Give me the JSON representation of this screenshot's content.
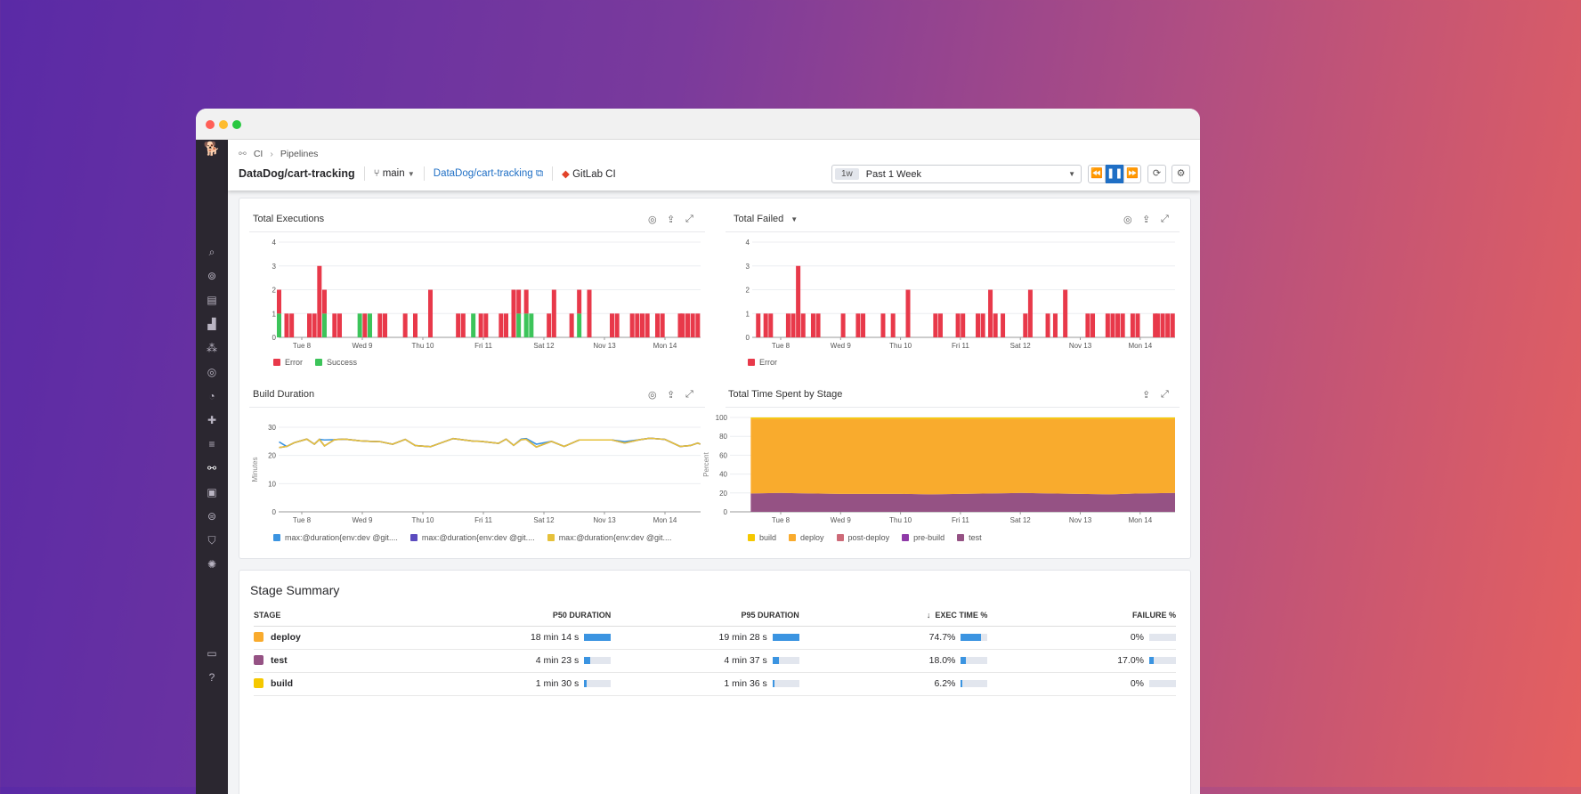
{
  "window": {
    "controls": [
      "#ff5f57",
      "#febc2e",
      "#28c840"
    ]
  },
  "sidebar": {
    "icons": [
      "datadog-logo-icon",
      "search-icon",
      "binoculars-icon",
      "dashboard-icon",
      "chart-icon",
      "services-icon",
      "apm-icon",
      "gauge-icon",
      "puzzle-icon",
      "logs-icon",
      "ci-icon",
      "notebook-icon",
      "security-scan-icon",
      "shield-icon",
      "integrations-icon",
      "chat-icon",
      "help-icon"
    ]
  },
  "header": {
    "breadcrumb": [
      "CI",
      "Pipelines"
    ],
    "title": "DataDog/cart-tracking",
    "branch": "main",
    "repo_link": "DataDog/cart-tracking",
    "provider": "GitLab CI",
    "time_badge": "1w",
    "time_range": "Past 1 Week"
  },
  "charts": {
    "executions": {
      "title": "Total Executions",
      "legend": [
        "Error",
        "Success"
      ]
    },
    "failed": {
      "title": "Total Failed",
      "legend": [
        "Error"
      ]
    },
    "duration": {
      "title": "Build Duration",
      "legend": [
        "max:@duration{env:dev @git....",
        "max:@duration{env:dev @git....",
        "max:@duration{env:dev @git...."
      ]
    },
    "stage": {
      "title": "Total Time Spent by Stage",
      "legend": [
        "build",
        "deploy",
        "post-deploy",
        "pre-build",
        "test"
      ]
    }
  },
  "colors": {
    "error": "#e8394a",
    "success": "#3cc45a",
    "dur1": "#3b94e1",
    "dur2": "#5b4bbf",
    "dur3": "#e6c13a",
    "build": "#f5c800",
    "deploy": "#f9ab2d",
    "post_deploy": "#cd6a78",
    "pre_build": "#8f3aa8",
    "test": "#955284",
    "accent": "#1f6fc5"
  },
  "chart_data": [
    {
      "type": "bar",
      "title": "Total Executions",
      "stacked": true,
      "ylim": [
        0,
        4
      ],
      "yticks": [
        0,
        1,
        2,
        3,
        4
      ],
      "xticks": [
        "Tue 8",
        "Wed 9",
        "Thu 10",
        "Fri 11",
        "Sat 12",
        "Nov 13",
        "Mon 14"
      ],
      "legend": "bottom-left",
      "series": [
        {
          "name": "Error",
          "points": [
            [
              "11-07 15:00",
              1
            ],
            [
              "11-07 18:00",
              1
            ],
            [
              "11-07 20:00",
              1
            ],
            [
              "11-08 03:00",
              1
            ],
            [
              "11-08 05:00",
              1
            ],
            [
              "11-08 07:00",
              3
            ],
            [
              "11-08 09:00",
              1
            ],
            [
              "11-08 13:00",
              1
            ],
            [
              "11-08 15:00",
              1
            ],
            [
              "11-09 01:00",
              1
            ],
            [
              "11-09 07:00",
              1
            ],
            [
              "11-09 09:00",
              1
            ],
            [
              "11-09 17:00",
              1
            ],
            [
              "11-09 21:00",
              1
            ],
            [
              "11-10 03:00",
              2
            ],
            [
              "11-10 14:00",
              1
            ],
            [
              "11-10 16:00",
              1
            ],
            [
              "11-10 23:00",
              1
            ],
            [
              "11-11 01:00",
              1
            ],
            [
              "11-11 07:00",
              1
            ],
            [
              "11-11 09:00",
              1
            ],
            [
              "11-11 12:00",
              2
            ],
            [
              "11-11 14:00",
              1
            ],
            [
              "11-11 17:00",
              1
            ],
            [
              "11-12 02:00",
              1
            ],
            [
              "11-12 04:00",
              2
            ],
            [
              "11-12 11:00",
              1
            ],
            [
              "11-12 14:00",
              1
            ],
            [
              "11-12 18:00",
              2
            ],
            [
              "11-13 03:00",
              1
            ],
            [
              "11-13 05:00",
              1
            ],
            [
              "11-13 11:00",
              1
            ],
            [
              "11-13 13:00",
              1
            ],
            [
              "11-13 15:00",
              1
            ],
            [
              "11-13 17:00",
              1
            ],
            [
              "11-13 21:00",
              1
            ],
            [
              "11-13 23:00",
              1
            ],
            [
              "11-14 06:00",
              1
            ],
            [
              "11-14 07:00",
              1
            ],
            [
              "11-14 09:00",
              1
            ],
            [
              "11-14 11:00",
              1
            ],
            [
              "11-14 13:00",
              1
            ]
          ]
        },
        {
          "name": "Success",
          "points": [
            [
              "11-07 15:00",
              1
            ],
            [
              "11-08 09:00",
              1
            ],
            [
              "11-08 23:00",
              1
            ],
            [
              "11-09 03:00",
              1
            ],
            [
              "11-10 20:00",
              1
            ],
            [
              "11-11 14:00",
              1
            ],
            [
              "11-11 17:00",
              1
            ],
            [
              "11-11 19:00",
              1
            ],
            [
              "11-12 14:00",
              1
            ]
          ]
        }
      ]
    },
    {
      "type": "bar",
      "title": "Total Failed",
      "ylim": [
        0,
        4
      ],
      "yticks": [
        0,
        1,
        2,
        3,
        4
      ],
      "xticks": [
        "Tue 8",
        "Wed 9",
        "Thu 10",
        "Fri 11",
        "Sat 12",
        "Nov 13",
        "Mon 14"
      ],
      "legend": "bottom-left",
      "series": [
        {
          "name": "Error",
          "points": [
            [
              "11-07 15:00",
              1
            ],
            [
              "11-07 18:00",
              1
            ],
            [
              "11-07 20:00",
              1
            ],
            [
              "11-08 03:00",
              1
            ],
            [
              "11-08 05:00",
              1
            ],
            [
              "11-08 07:00",
              3
            ],
            [
              "11-08 09:00",
              1
            ],
            [
              "11-08 13:00",
              1
            ],
            [
              "11-08 15:00",
              1
            ],
            [
              "11-09 01:00",
              1
            ],
            [
              "11-09 07:00",
              1
            ],
            [
              "11-09 09:00",
              1
            ],
            [
              "11-09 17:00",
              1
            ],
            [
              "11-09 21:00",
              1
            ],
            [
              "11-10 03:00",
              2
            ],
            [
              "11-10 14:00",
              1
            ],
            [
              "11-10 16:00",
              1
            ],
            [
              "11-10 23:00",
              1
            ],
            [
              "11-11 01:00",
              1
            ],
            [
              "11-11 07:00",
              1
            ],
            [
              "11-11 09:00",
              1
            ],
            [
              "11-11 12:00",
              2
            ],
            [
              "11-11 14:00",
              1
            ],
            [
              "11-11 17:00",
              1
            ],
            [
              "11-12 02:00",
              1
            ],
            [
              "11-12 04:00",
              2
            ],
            [
              "11-12 11:00",
              1
            ],
            [
              "11-12 14:00",
              1
            ],
            [
              "11-12 18:00",
              2
            ],
            [
              "11-13 03:00",
              1
            ],
            [
              "11-13 05:00",
              1
            ],
            [
              "11-13 11:00",
              1
            ],
            [
              "11-13 13:00",
              1
            ],
            [
              "11-13 15:00",
              1
            ],
            [
              "11-13 17:00",
              1
            ],
            [
              "11-13 21:00",
              1
            ],
            [
              "11-13 23:00",
              1
            ],
            [
              "11-14 06:00",
              1
            ],
            [
              "11-14 07:00",
              1
            ],
            [
              "11-14 09:00",
              1
            ],
            [
              "11-14 11:00",
              1
            ],
            [
              "11-14 13:00",
              1
            ]
          ]
        }
      ]
    },
    {
      "type": "line",
      "title": "Build Duration",
      "ylabel": "Minutes",
      "ylim": [
        0,
        30
      ],
      "yticks": [
        0,
        10,
        20,
        30
      ],
      "xticks": [
        "Tue 8",
        "Wed 9",
        "Thu 10",
        "Fri 11",
        "Sat 12",
        "Nov 13",
        "Mon 14"
      ],
      "legend": "bottom-left",
      "x": [
        "11-07 15:00",
        "11-07 18:00",
        "11-07 21:00",
        "11-08 02:00",
        "11-08 05:00",
        "11-08 07:00",
        "11-08 09:00",
        "11-08 13:00",
        "11-08 17:00",
        "11-08 23:00",
        "11-09 03:00",
        "11-09 07:00",
        "11-09 12:00",
        "11-09 17:00",
        "11-09 21:00",
        "11-10 03:00",
        "11-10 12:00",
        "11-10 20:00",
        "11-10 23:00",
        "11-11 06:00",
        "11-11 09:00",
        "11-11 12:00",
        "11-11 15:00",
        "11-11 17:00",
        "11-11 21:00",
        "11-12 03:00",
        "11-12 08:00",
        "11-12 14:00",
        "11-12 20:00",
        "11-13 03:00",
        "11-13 08:00",
        "11-13 14:00",
        "11-13 18:00",
        "11-14 00:00",
        "11-14 06:00",
        "11-14 10:00",
        "11-14 13:00",
        "11-14 14:00"
      ],
      "series": [
        {
          "values": [
            24.8,
            23.2,
            24.5,
            25.8,
            24.0,
            25.7,
            25.5,
            25.6,
            25.8,
            25.2,
            25.0,
            24.9,
            24.0,
            25.7,
            23.5,
            23.1,
            26.0,
            25.1,
            25.0,
            24.3,
            25.8,
            23.6,
            25.8,
            26.0,
            24.0,
            25.0,
            23.2,
            25.5,
            25.5,
            25.5,
            24.9,
            25.6,
            26.1,
            25.7,
            23.2,
            23.5,
            24.4,
            24.0
          ]
        },
        {
          "values": [
            22.8,
            23.2,
            24.5,
            25.8,
            24.0,
            25.7,
            23.4,
            25.6,
            25.8,
            25.2,
            25.0,
            24.9,
            24.0,
            25.7,
            23.5,
            23.1,
            26.0,
            25.1,
            25.0,
            24.3,
            25.8,
            23.6,
            25.6,
            25.7,
            23.0,
            25.0,
            23.2,
            25.5,
            25.5,
            25.5,
            24.4,
            25.6,
            26.1,
            25.7,
            23.2,
            23.5,
            24.4,
            24.0
          ]
        },
        {
          "values": [
            22.8,
            23.2,
            24.5,
            25.8,
            24.0,
            25.7,
            23.4,
            25.6,
            25.8,
            25.2,
            25.0,
            24.9,
            24.0,
            25.7,
            23.5,
            23.1,
            26.0,
            25.1,
            25.0,
            24.3,
            25.8,
            23.6,
            25.6,
            25.7,
            23.0,
            25.0,
            23.2,
            25.5,
            25.5,
            25.5,
            24.4,
            25.6,
            26.1,
            25.7,
            23.2,
            23.5,
            24.4,
            24.0
          ]
        }
      ]
    },
    {
      "type": "area",
      "title": "Total Time Spent by Stage",
      "ylabel": "Percent",
      "stacked": true,
      "ylim": [
        0,
        100
      ],
      "yticks": [
        0,
        20,
        40,
        60,
        80,
        100
      ],
      "xticks": [
        "Tue 8",
        "Wed 9",
        "Thu 10",
        "Fri 11",
        "Sat 12",
        "Nov 13",
        "Mon 14"
      ],
      "legend": "bottom-left",
      "x": [
        "11-07 12:00",
        "11-08 00:00",
        "11-08 12:00",
        "11-09 00:00",
        "11-09 12:00",
        "11-10 00:00",
        "11-10 12:00",
        "11-11 00:00",
        "11-11 12:00",
        "11-12 00:00",
        "11-12 12:00",
        "11-13 00:00",
        "11-13 12:00",
        "11-14 00:00",
        "11-14 14:00"
      ],
      "series": [
        {
          "name": "test",
          "values": [
            19.5,
            20,
            19.5,
            19,
            19,
            19,
            18.5,
            19,
            19.5,
            20,
            19.5,
            19,
            18.5,
            19.5,
            20
          ]
        },
        {
          "name": "pre-build",
          "values": [
            0,
            0,
            0,
            0,
            0,
            0,
            0,
            0,
            0,
            0,
            0,
            0,
            0,
            0,
            0
          ]
        },
        {
          "name": "post-deploy",
          "values": [
            0,
            0,
            0,
            0,
            0,
            0,
            0,
            0,
            0,
            0,
            0,
            0,
            0,
            0,
            0
          ]
        },
        {
          "name": "deploy",
          "values": [
            79,
            78.5,
            79,
            79.5,
            79.5,
            79.5,
            80,
            79.5,
            79,
            78.5,
            79,
            79.5,
            80,
            79,
            78.5
          ]
        },
        {
          "name": "build",
          "values": [
            1.5,
            1.5,
            1.5,
            1.5,
            1.5,
            1.5,
            1.5,
            1.5,
            1.5,
            1.5,
            1.5,
            1.5,
            1.5,
            1.5,
            1.5
          ]
        }
      ]
    }
  ],
  "stage_summary": {
    "title": "Stage Summary",
    "columns": [
      "STAGE",
      "P50 DURATION",
      "P95 DURATION",
      "EXEC TIME %",
      "FAILURE %"
    ],
    "sort_column": "EXEC TIME %",
    "rows": [
      {
        "stage": "deploy",
        "color": "#f9ab2d",
        "p50": "18 min 14 s",
        "p50_frac": 1.0,
        "p95": "19 min 28 s",
        "p95_frac": 1.0,
        "exec": "74.7%",
        "exec_frac": 0.747,
        "fail": "0%",
        "fail_frac": 0
      },
      {
        "stage": "test",
        "color": "#955284",
        "p50": "4 min 23 s",
        "p50_frac": 0.24,
        "p95": "4 min 37 s",
        "p95_frac": 0.24,
        "exec": "18.0%",
        "exec_frac": 0.18,
        "fail": "17.0%",
        "fail_frac": 0.17
      },
      {
        "stage": "build",
        "color": "#f5c800",
        "p50": "1 min 30 s",
        "p50_frac": 0.08,
        "p95": "1 min 36 s",
        "p95_frac": 0.08,
        "exec": "6.2%",
        "exec_frac": 0.062,
        "fail": "0%",
        "fail_frac": 0
      }
    ]
  }
}
